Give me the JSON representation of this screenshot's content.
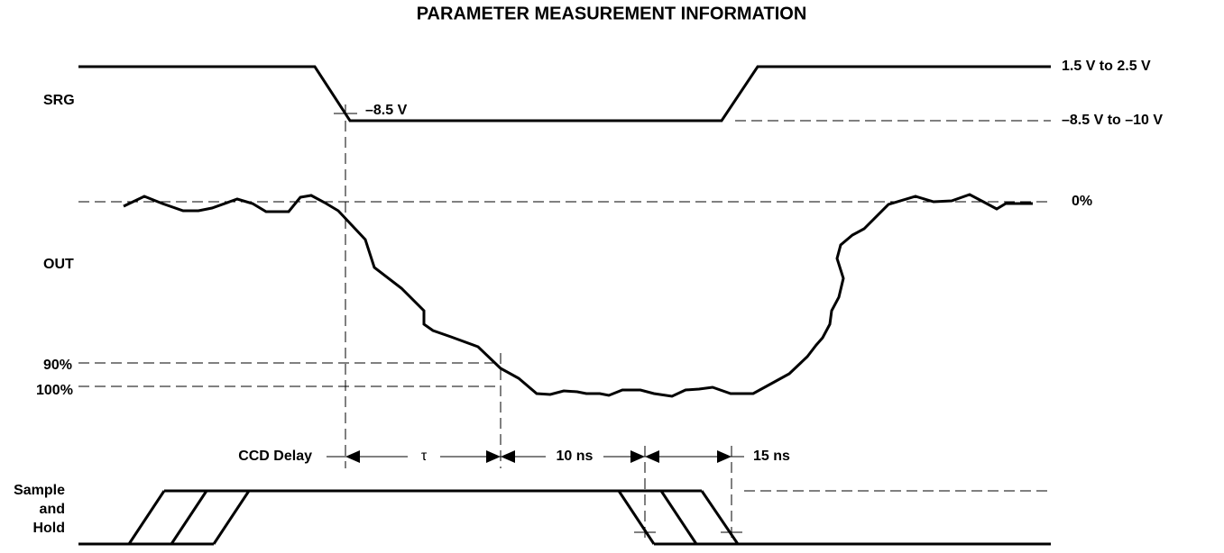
{
  "title": "PARAMETER MEASUREMENT INFORMATION",
  "signals": [
    {
      "label": "SRG"
    },
    {
      "label": "OUT"
    },
    {
      "label": [
        "Sample",
        "and",
        "Hold"
      ]
    }
  ],
  "srg_levels": {
    "high": "1.5 V to 2.5 V",
    "low": "–8.5 V to –10 V",
    "marker": "–8.5 V"
  },
  "out_levels": {
    "zero": "0%",
    "ninety": "90%",
    "hundred": "100%"
  },
  "timings": [
    "CCD Delay",
    "τ",
    "10 ns",
    "15 ns"
  ]
}
